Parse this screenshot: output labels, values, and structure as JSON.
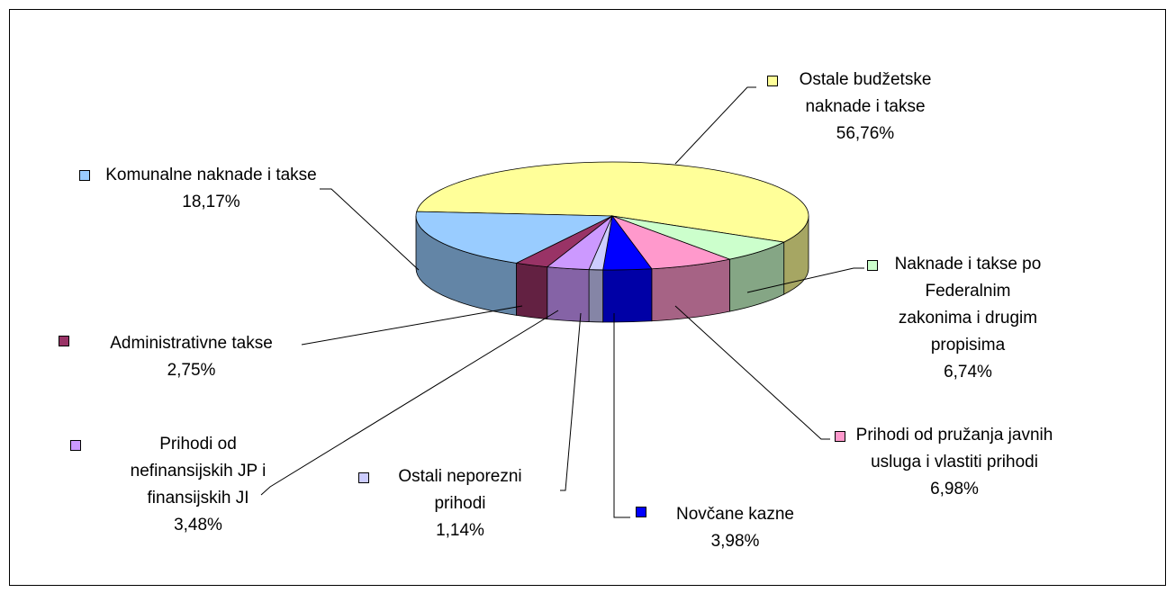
{
  "chart_data": {
    "type": "pie3d",
    "categories": [
      "Ostale budžetske naknade i takse",
      "Naknade i takse po Federalnim zakonima i drugim propisima",
      "Prihodi od pružanja javnih usluga i vlastiti prihodi",
      "Novčane kazne",
      "Ostali neporezni prihodi",
      "Prihodi od nefinansijskih JP i finansijskih JI",
      "Administrativne takse",
      "Komunalne naknade i takse"
    ],
    "values": [
      56.76,
      6.74,
      6.98,
      3.98,
      1.14,
      3.48,
      2.75,
      18.17
    ],
    "value_labels": [
      "56,76%",
      "6,74%",
      "6,98%",
      "3,98%",
      "1,14%",
      "3,48%",
      "2,75%",
      "18,17%"
    ],
    "colors": [
      "#ffff99",
      "#ccffcc",
      "#ff99cc",
      "#0000ff",
      "#ccccff",
      "#cc99ff",
      "#993366",
      "#99ccff"
    ]
  }
}
